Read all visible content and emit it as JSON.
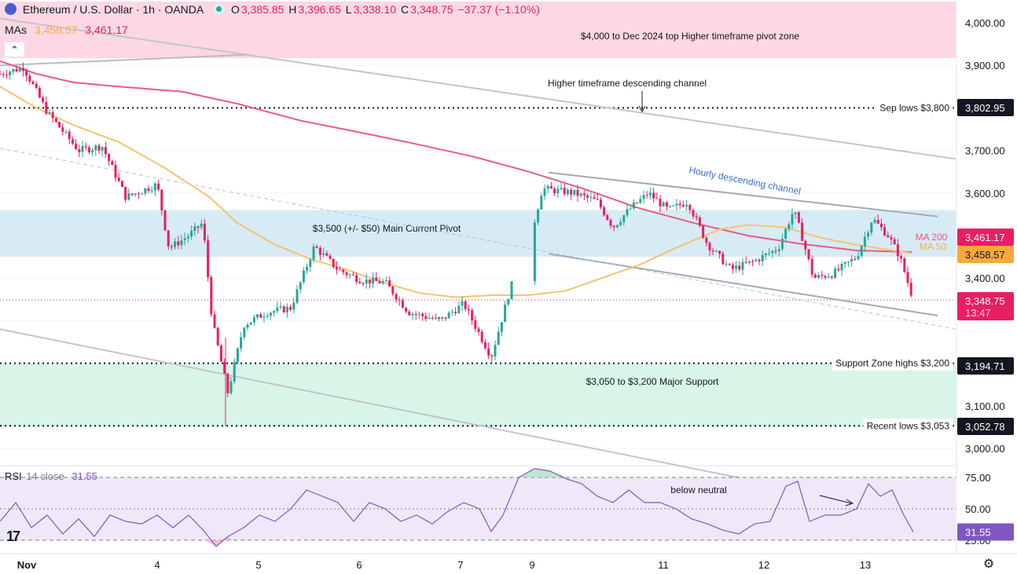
{
  "header": {
    "symbol_title": "Ethereum / U.S. Dollar · 1h · OANDA",
    "ohlc": [
      {
        "k": "O",
        "v": "3,385.85"
      },
      {
        "k": "H",
        "v": "3,396.65"
      },
      {
        "k": "L",
        "v": "3,338.10"
      },
      {
        "k": "C",
        "v": "3,348.75"
      }
    ],
    "change": "−37.37 (−1.10%)",
    "mas_label": "MAs",
    "ma50_value": "3,458.57",
    "ma200_value": "3,461.17",
    "rsi_label": "RSI",
    "rsi_params": "14 close",
    "rsi_value": "31.55"
  },
  "colors": {
    "up": "#26a69a",
    "down": "#e91e63",
    "ma50": "#f6c46d",
    "ma200": "#ec5a83",
    "rsi": "#7e57c2",
    "pivot_zone": "#d7ebf5",
    "support_zone": "#d9f5e8",
    "top_zone": "#fdd7e4",
    "channel": "#a6a8b5"
  },
  "chart_data": {
    "type": "candlestick",
    "x_tick_labels": [
      "Nov",
      "4",
      "5",
      "6",
      "7",
      "9",
      "11",
      "12",
      "13"
    ],
    "y_axis": {
      "ticks": [
        "4,000.00",
        "3,900.00",
        "3,700.00",
        "3,600.00",
        "3,400.00",
        "3,100.00",
        "3,000.00"
      ],
      "ylim": [
        2960,
        4050
      ]
    },
    "price_labels": [
      {
        "id": "sep-lows",
        "value": 3802.95,
        "text": "3,802.95"
      },
      {
        "id": "ma200",
        "value": 3461.17,
        "text": "3,461.17"
      },
      {
        "id": "ma50",
        "value": 3458.57,
        "text": "3,458.57"
      },
      {
        "id": "last",
        "value": 3348.75,
        "text": "3,348.75",
        "countdown": "13:47"
      },
      {
        "id": "support-high",
        "value": 3194.71,
        "text": "3,194.71"
      },
      {
        "id": "recent-low",
        "value": 3052.78,
        "text": "3,052.78"
      }
    ],
    "zones": [
      {
        "id": "top-pivot",
        "from": 3917,
        "to": 4050,
        "label": "$4,000 to Dec 2024 top Higher timeframe pivot zone"
      },
      {
        "id": "main-pivot",
        "from": 3450,
        "to": 3560,
        "label": "$3,500 (+/- $50) Main Current Pivot"
      },
      {
        "id": "major-support",
        "from": 3050,
        "to": 3200,
        "label": "$3,050 to $3,200 Major Support"
      }
    ],
    "horizontal_levels": [
      {
        "id": "sep-lows",
        "value": 3800,
        "label": "Sep lows $3,800"
      },
      {
        "id": "support-zone-highs",
        "value": 3200,
        "label": "Support Zone highs $3,200"
      },
      {
        "id": "recent-lows",
        "value": 3053,
        "label": "Recent lows $3,053"
      }
    ],
    "annotations": {
      "htf_channel": "Higher timeframe descending channel",
      "hourly_channel": "Hourly descending channel",
      "ma200_tag": "MA 200",
      "ma50_tag": "MA 50",
      "rsi_note": "below neutral"
    },
    "series": [
      {
        "name": "MA 200",
        "points": [
          [
            0,
            3910
          ],
          [
            40,
            3880
          ],
          [
            80,
            3860
          ],
          [
            130,
            3850
          ],
          [
            200,
            3838
          ],
          [
            260,
            3810
          ],
          [
            330,
            3770
          ],
          [
            400,
            3740
          ],
          [
            450,
            3718
          ],
          [
            520,
            3685
          ],
          [
            580,
            3650
          ],
          [
            640,
            3610
          ],
          [
            700,
            3565
          ],
          [
            760,
            3530
          ],
          [
            820,
            3500
          ],
          [
            880,
            3480
          ],
          [
            940,
            3465
          ],
          [
            1000,
            3461.17
          ]
        ]
      },
      {
        "name": "MA 50",
        "points": [
          [
            0,
            3850
          ],
          [
            40,
            3800
          ],
          [
            80,
            3760
          ],
          [
            130,
            3720
          ],
          [
            180,
            3660
          ],
          [
            230,
            3590
          ],
          [
            260,
            3530
          ],
          [
            300,
            3480
          ],
          [
            340,
            3445
          ],
          [
            380,
            3420
          ],
          [
            420,
            3390
          ],
          [
            460,
            3365
          ],
          [
            500,
            3355
          ],
          [
            540,
            3360
          ],
          [
            580,
            3360
          ],
          [
            620,
            3370
          ],
          [
            660,
            3400
          ],
          [
            700,
            3430
          ],
          [
            740,
            3470
          ],
          [
            790,
            3515
          ],
          [
            820,
            3525
          ],
          [
            860,
            3520
          ],
          [
            900,
            3495
          ],
          [
            940,
            3478
          ],
          [
            980,
            3465
          ],
          [
            1000,
            3458.57
          ]
        ]
      }
    ],
    "ohlc_key_points": [
      {
        "t": 0,
        "price": 3880
      },
      {
        "t": 30,
        "price": 3895
      },
      {
        "t": 60,
        "price": 3790
      },
      {
        "t": 100,
        "price": 3700
      },
      {
        "t": 130,
        "price": 3710
      },
      {
        "t": 160,
        "price": 3590
      },
      {
        "t": 200,
        "price": 3620
      },
      {
        "t": 215,
        "price": 3470
      },
      {
        "t": 240,
        "price": 3500
      },
      {
        "t": 258,
        "price": 3530
      },
      {
        "t": 270,
        "price": 3300
      },
      {
        "t": 290,
        "price": 3130
      },
      {
        "t": 310,
        "price": 3290
      },
      {
        "t": 340,
        "price": 3320
      },
      {
        "t": 370,
        "price": 3330
      },
      {
        "t": 400,
        "price": 3475
      },
      {
        "t": 430,
        "price": 3420
      },
      {
        "t": 460,
        "price": 3395
      },
      {
        "t": 490,
        "price": 3390
      },
      {
        "t": 520,
        "price": 3320
      },
      {
        "t": 560,
        "price": 3300
      },
      {
        "t": 590,
        "price": 3340
      },
      {
        "t": 625,
        "price": 3215
      },
      {
        "t": 650,
        "price": 3380
      },
      {
        "t": 670,
        "price": 3455
      },
      {
        "t": 690,
        "price": 3610
      },
      {
        "t": 730,
        "price": 3600
      },
      {
        "t": 760,
        "price": 3580
      },
      {
        "t": 780,
        "price": 3520
      },
      {
        "t": 800,
        "price": 3560
      },
      {
        "t": 825,
        "price": 3600
      },
      {
        "t": 850,
        "price": 3560
      },
      {
        "t": 875,
        "price": 3580
      },
      {
        "t": 900,
        "price": 3480
      },
      {
        "t": 930,
        "price": 3420
      },
      {
        "t": 960,
        "price": 3440
      },
      {
        "t": 990,
        "price": 3470
      },
      {
        "t": 1010,
        "price": 3560
      },
      {
        "t": 1020,
        "price": 3500
      },
      {
        "t": 1035,
        "price": 3400
      },
      {
        "t": 1060,
        "price": 3410
      },
      {
        "t": 1090,
        "price": 3450
      },
      {
        "t": 1110,
        "price": 3540
      },
      {
        "t": 1130,
        "price": 3500
      },
      {
        "t": 1145,
        "price": 3450
      },
      {
        "t": 1162,
        "price": 3348.75
      }
    ],
    "rsi": {
      "levels": [
        {
          "value": 75,
          "text": "75.00"
        },
        {
          "value": 50,
          "text": "50.00"
        },
        {
          "value": 25,
          "text": "25.00"
        }
      ],
      "current": 31.55,
      "current_text": "31.55",
      "ylim": [
        20,
        82
      ],
      "points": [
        [
          0,
          40
        ],
        [
          20,
          55
        ],
        [
          40,
          35
        ],
        [
          60,
          45
        ],
        [
          80,
          30
        ],
        [
          100,
          42
        ],
        [
          120,
          28
        ],
        [
          140,
          45
        ],
        [
          160,
          40
        ],
        [
          180,
          38
        ],
        [
          200,
          45
        ],
        [
          220,
          35
        ],
        [
          240,
          45
        ],
        [
          260,
          32
        ],
        [
          275,
          20
        ],
        [
          290,
          28
        ],
        [
          310,
          35
        ],
        [
          330,
          45
        ],
        [
          350,
          40
        ],
        [
          370,
          50
        ],
        [
          390,
          65
        ],
        [
          410,
          60
        ],
        [
          430,
          55
        ],
        [
          450,
          40
        ],
        [
          470,
          55
        ],
        [
          490,
          50
        ],
        [
          510,
          40
        ],
        [
          530,
          45
        ],
        [
          550,
          38
        ],
        [
          570,
          48
        ],
        [
          590,
          55
        ],
        [
          610,
          50
        ],
        [
          625,
          32
        ],
        [
          640,
          45
        ],
        [
          660,
          75
        ],
        [
          680,
          82
        ],
        [
          700,
          80
        ],
        [
          720,
          74
        ],
        [
          740,
          70
        ],
        [
          760,
          60
        ],
        [
          780,
          55
        ],
        [
          800,
          65
        ],
        [
          820,
          55
        ],
        [
          840,
          55
        ],
        [
          860,
          50
        ],
        [
          880,
          42
        ],
        [
          900,
          38
        ],
        [
          920,
          33
        ],
        [
          940,
          30
        ],
        [
          960,
          38
        ],
        [
          980,
          40
        ],
        [
          1000,
          68
        ],
        [
          1015,
          72
        ],
        [
          1030,
          40
        ],
        [
          1050,
          45
        ],
        [
          1070,
          45
        ],
        [
          1090,
          50
        ],
        [
          1105,
          70
        ],
        [
          1120,
          60
        ],
        [
          1135,
          65
        ],
        [
          1150,
          45
        ],
        [
          1162,
          31.55
        ]
      ]
    }
  },
  "toolbar": {
    "logo_text": "17",
    "collapse_glyph": "⌃",
    "settings_glyph": "⚙"
  }
}
